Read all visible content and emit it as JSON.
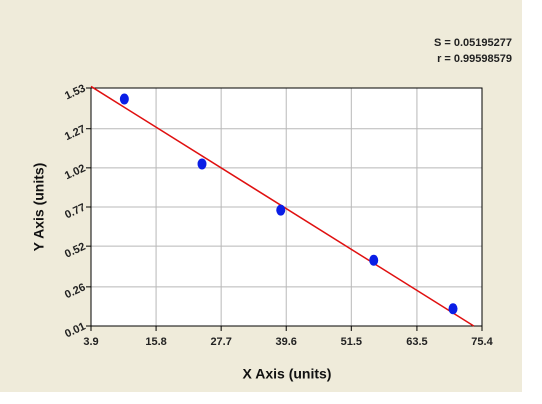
{
  "chart_data": {
    "type": "scatter",
    "annotations": [
      "S = 0.05195277",
      "r = 0.99598579"
    ],
    "x_label": "X Axis (units)",
    "y_label": "Y Axis (units)",
    "series": [
      {
        "color": "#0a1ee6",
        "x": [
          10,
          24.2,
          38.6,
          55.6,
          70.1
        ],
        "values": [
          1.46,
          1.045,
          0.75,
          0.43,
          0.12
        ]
      }
    ],
    "fit_line": {
      "color": "#e01010",
      "x": [
        3.9,
        73.9
      ],
      "values": [
        1.54,
        0.01
      ]
    },
    "xlim": [
      3.9,
      75.4
    ],
    "xticks": [
      3.9,
      15.8,
      27.7,
      39.6,
      51.5,
      63.5,
      75.4
    ],
    "ylim": [
      0.01,
      1.53
    ],
    "yticks": [
      0.01,
      0.26,
      0.52,
      0.77,
      1.02,
      1.27,
      1.53
    ],
    "grid": true
  }
}
